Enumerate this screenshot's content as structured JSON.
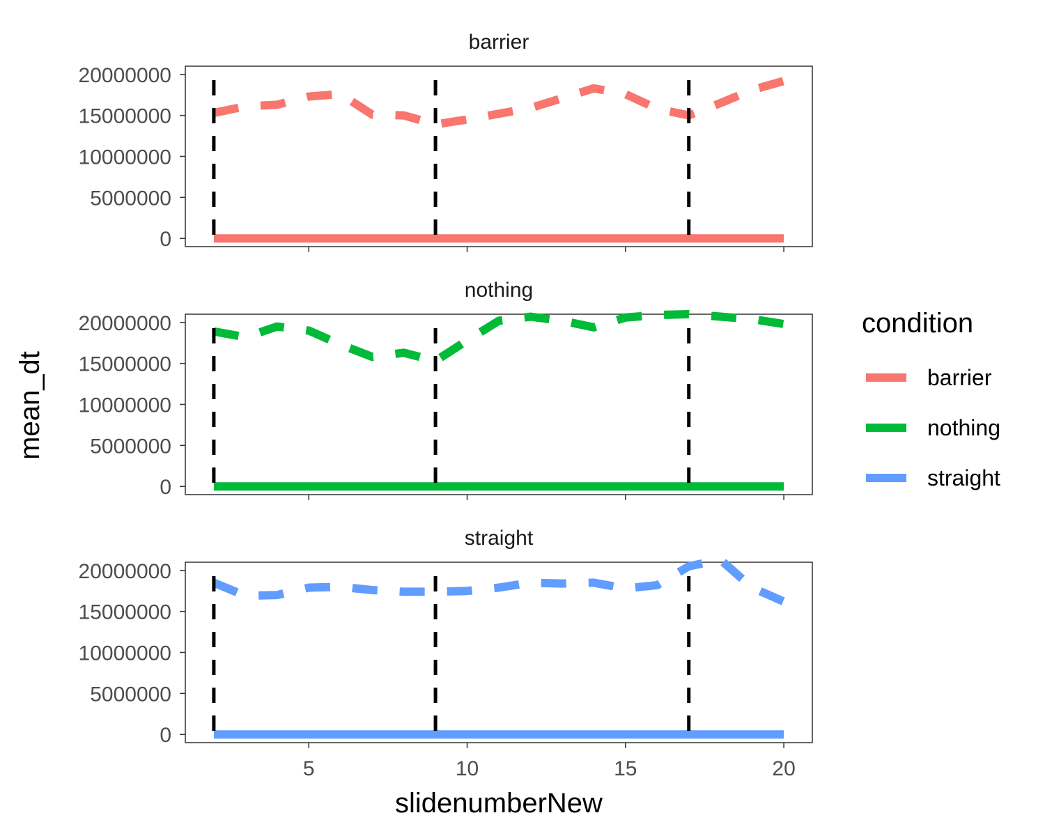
{
  "chart_data": {
    "type": "line",
    "facet_by": "condition",
    "xlabel": "slidenumberNew",
    "ylabel": "mean_dt",
    "x_ticks": [
      5,
      10,
      15,
      20
    ],
    "y_ticks": [
      0,
      5000000,
      10000000,
      15000000,
      20000000
    ],
    "y_tick_labels": [
      "0",
      "5000000",
      "10000000",
      "15000000",
      "20000000"
    ],
    "x_tick_labels": [
      "5",
      "10",
      "15",
      "20"
    ],
    "xlim": [
      1.1,
      20.9
    ],
    "ylim": [
      -1000000,
      21000000
    ],
    "vlines": [
      2,
      9,
      17
    ],
    "vline_style": "dashed",
    "legend": {
      "title": "condition",
      "position": "right",
      "entries": [
        "barrier",
        "nothing",
        "straight"
      ]
    },
    "series": [
      {
        "name": "barrier",
        "color": "#F8766D",
        "panel_title": "barrier",
        "x": [
          2,
          3,
          4,
          5,
          6,
          7,
          8,
          9,
          10,
          11,
          12,
          13,
          14,
          15,
          16,
          17,
          18,
          19,
          20
        ],
        "dashed_values": [
          15300000,
          16100000,
          16300000,
          17300000,
          17600000,
          15100000,
          15000000,
          13900000,
          14500000,
          15200000,
          15900000,
          17100000,
          18300000,
          17600000,
          15800000,
          15000000,
          16500000,
          18100000,
          19200000
        ],
        "baseline_values": [
          0,
          0,
          0,
          0,
          0,
          0,
          0,
          0,
          0,
          0,
          0,
          0,
          0,
          0,
          0,
          0,
          0,
          0,
          0
        ]
      },
      {
        "name": "nothing",
        "color": "#00BA38",
        "panel_title": "nothing",
        "x": [
          2,
          3,
          4,
          5,
          6,
          7,
          8,
          9,
          10,
          11,
          12,
          13,
          14,
          15,
          16,
          17,
          18,
          19,
          20
        ],
        "dashed_values": [
          18900000,
          18200000,
          19500000,
          19000000,
          17300000,
          15800000,
          16300000,
          15300000,
          17800000,
          20200000,
          20700000,
          20200000,
          19400000,
          20600000,
          20900000,
          21000000,
          20700000,
          20400000,
          19800000
        ],
        "baseline_values": [
          0,
          0,
          0,
          0,
          0,
          0,
          0,
          0,
          0,
          0,
          0,
          0,
          0,
          0,
          0,
          0,
          0,
          0,
          0
        ]
      },
      {
        "name": "straight",
        "color": "#619CFF",
        "panel_title": "straight",
        "x": [
          2,
          3,
          4,
          5,
          6,
          7,
          8,
          9,
          10,
          11,
          12,
          13,
          14,
          15,
          16,
          17,
          18,
          19,
          20
        ],
        "dashed_values": [
          18500000,
          16900000,
          17000000,
          17900000,
          18000000,
          17600000,
          17400000,
          17400000,
          17500000,
          17900000,
          18500000,
          18400000,
          18500000,
          17800000,
          18200000,
          20500000,
          21300000,
          17900000,
          16200000
        ],
        "baseline_values": [
          0,
          0,
          0,
          0,
          0,
          0,
          0,
          0,
          0,
          0,
          0,
          0,
          0,
          0,
          0,
          0,
          0,
          0,
          0
        ]
      }
    ]
  }
}
